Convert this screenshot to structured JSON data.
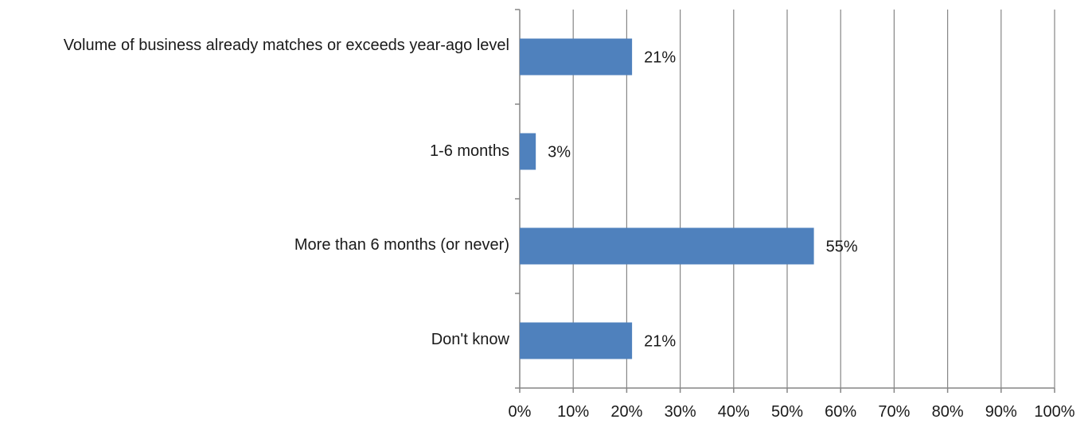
{
  "chart_data": {
    "type": "bar",
    "orientation": "horizontal",
    "categories": [
      "Volume of business already matches or exceeds year-ago level",
      "1-6 months",
      "More than 6 months (or never)",
      "Don't know"
    ],
    "values": [
      21,
      3,
      55,
      21
    ],
    "data_labels": [
      "21%",
      "3%",
      "55%",
      "21%"
    ],
    "x_ticks": [
      0,
      10,
      20,
      30,
      40,
      50,
      60,
      70,
      80,
      90,
      100
    ],
    "x_tick_labels": [
      "0%",
      "10%",
      "20%",
      "30%",
      "40%",
      "50%",
      "60%",
      "70%",
      "80%",
      "90%",
      "100%"
    ],
    "xlim": [
      0,
      100
    ],
    "title": "",
    "xlabel": "",
    "ylabel": "",
    "grid": "vertical",
    "legend": "none",
    "colors": {
      "bar": "#4f81bd",
      "grid": "#868686",
      "axis": "#868686",
      "text": "#1a1a1a"
    }
  }
}
